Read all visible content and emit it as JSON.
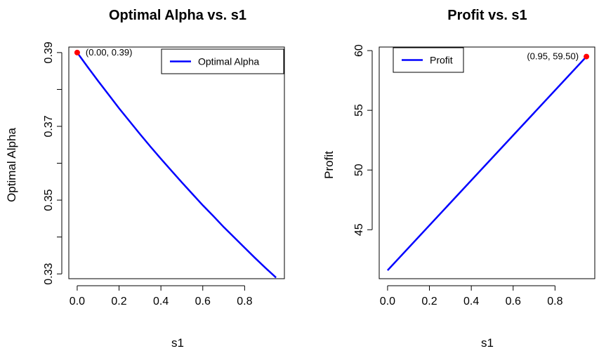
{
  "chart_data": [
    {
      "type": "line",
      "title": "Optimal Alpha vs. s1",
      "xlabel": "s1",
      "ylabel": "Optimal Alpha",
      "xlim": [
        -0.04,
        0.99
      ],
      "ylim": [
        0.3287,
        0.3915
      ],
      "x_ticks": [
        0.0,
        0.2,
        0.4,
        0.6,
        0.8
      ],
      "x_tick_labels": [
        "0.0",
        "0.2",
        "0.4",
        "0.6",
        "0.8"
      ],
      "y_ticks": [
        0.33,
        0.34,
        0.35,
        0.36,
        0.37,
        0.38,
        0.39
      ],
      "y_tick_labels": [
        "0.33",
        "",
        "0.35",
        "",
        "0.37",
        "",
        "0.39"
      ],
      "color": "#0000ff",
      "legend": {
        "position": "top-right",
        "entries": [
          "Optimal Alpha"
        ]
      },
      "series": [
        {
          "name": "Optimal Alpha",
          "x": [
            0.0,
            0.05,
            0.1,
            0.15,
            0.2,
            0.25,
            0.3,
            0.35,
            0.4,
            0.45,
            0.5,
            0.55,
            0.6,
            0.65,
            0.7,
            0.75,
            0.8,
            0.85,
            0.9,
            0.95
          ],
          "values": [
            0.39,
            0.3861,
            0.3823,
            0.3786,
            0.3749,
            0.3714,
            0.3679,
            0.3645,
            0.3612,
            0.358,
            0.3548,
            0.3517,
            0.3486,
            0.3457,
            0.3427,
            0.3399,
            0.3371,
            0.3343,
            0.3316,
            0.329
          ]
        }
      ],
      "highlight_point": {
        "x": 0.0,
        "y": 0.39,
        "label": "(0.00, 0.39)",
        "color": "#ff0000"
      }
    },
    {
      "type": "line",
      "title": "Profit vs. s1",
      "xlabel": "s1",
      "ylabel": "Profit",
      "xlim": [
        -0.04,
        0.99
      ],
      "ylim": [
        40.9,
        60.3
      ],
      "x_ticks": [
        0.0,
        0.2,
        0.4,
        0.6,
        0.8
      ],
      "x_tick_labels": [
        "0.0",
        "0.2",
        "0.4",
        "0.6",
        "0.8"
      ],
      "y_ticks": [
        45,
        50,
        55,
        60
      ],
      "y_tick_labels": [
        "45",
        "50",
        "55",
        "60"
      ],
      "color": "#0000ff",
      "legend": {
        "position": "top-left",
        "entries": [
          "Profit"
        ]
      },
      "series": [
        {
          "name": "Profit",
          "x": [
            0.0,
            0.95
          ],
          "values": [
            41.6,
            59.5
          ]
        }
      ],
      "highlight_point": {
        "x": 0.95,
        "y": 59.5,
        "label": "(0.95, 59.50)",
        "color": "#ff0000"
      }
    }
  ]
}
